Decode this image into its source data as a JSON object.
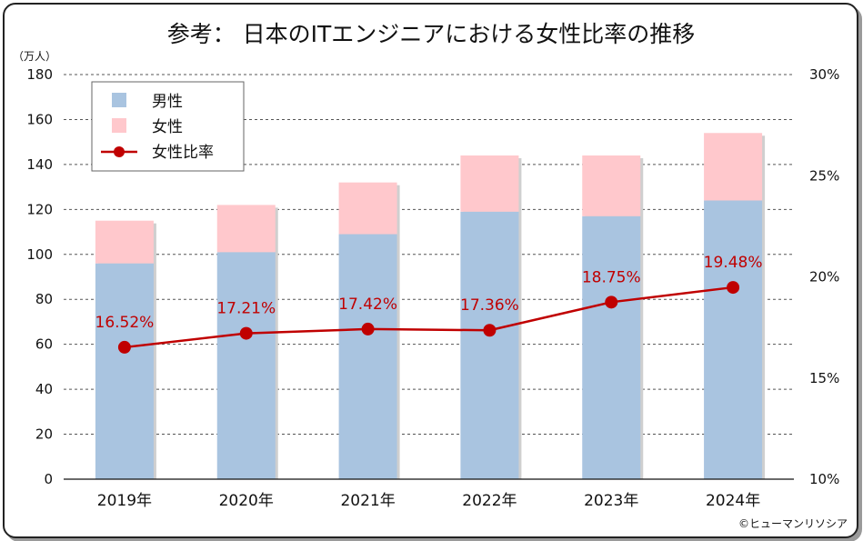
{
  "chart_data": {
    "type": "bar",
    "stacked": true,
    "title": "参考： 日本のITエンジニアにおける女性比率の推移",
    "y_unit_label": "（万人）",
    "categories": [
      "2019年",
      "2020年",
      "2021年",
      "2022年",
      "2023年",
      "2024年"
    ],
    "series": [
      {
        "name": "男性",
        "type": "bar",
        "color": "#a9c4e0",
        "values": [
          96,
          101,
          109,
          119,
          117,
          124
        ]
      },
      {
        "name": "女性",
        "type": "bar",
        "color": "#ffc8cc",
        "values": [
          19,
          21,
          23,
          25,
          27,
          30
        ]
      },
      {
        "name": "女性比率",
        "type": "line",
        "axis": "right",
        "color": "#c00000",
        "values": [
          16.52,
          17.21,
          17.42,
          17.36,
          18.75,
          19.48
        ],
        "labels": [
          "16.52%",
          "17.21%",
          "17.42%",
          "17.36%",
          "18.75%",
          "19.48%"
        ]
      }
    ],
    "ylim": [
      0,
      180
    ],
    "yticks": [
      "0",
      "20",
      "40",
      "60",
      "80",
      "100",
      "120",
      "140",
      "160",
      "180"
    ],
    "ylim_right": [
      10,
      30
    ],
    "yticks_right": [
      "10%",
      "15%",
      "20%",
      "25%",
      "30%"
    ],
    "legend_position": "top-left",
    "grid": true,
    "copyright": "©ヒューマンリソシア"
  }
}
